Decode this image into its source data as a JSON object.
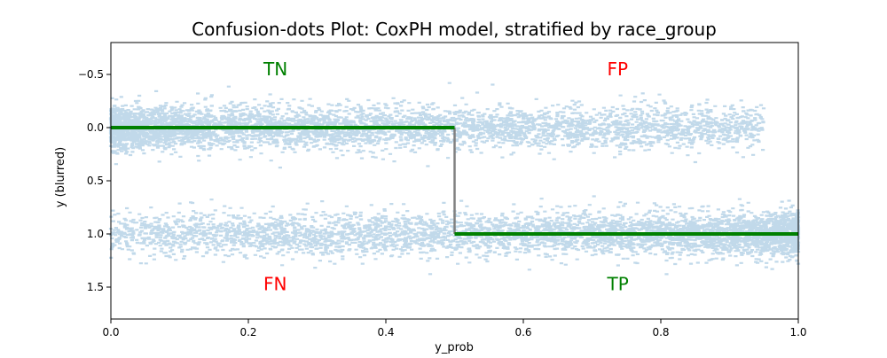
{
  "chart_data": {
    "type": "scatter",
    "title": "Confusion-dots Plot:   CoxPH model, stratified by race_group",
    "xlabel": "y_prob",
    "ylabel": "y (blurred)",
    "xlim": [
      0.0,
      1.0
    ],
    "ylim": [
      1.8,
      -0.8
    ],
    "y_inverted": true,
    "x_ticks": [
      0.0,
      0.2,
      0.4,
      0.6,
      0.8,
      1.0
    ],
    "x_tick_labels": [
      "0.0",
      "0.2",
      "0.4",
      "0.6",
      "0.8",
      "1.0"
    ],
    "y_ticks": [
      -0.5,
      0.0,
      0.5,
      1.0,
      1.5
    ],
    "y_tick_labels": [
      "−0.5",
      "0.0",
      "0.5",
      "1.0",
      "1.5"
    ],
    "grid": false,
    "colors": {
      "points": "#1f77b4",
      "threshold_step": "#008000",
      "threshold_vertical": "#808080",
      "label_correct": "#008000",
      "label_wrong": "#ff0000"
    },
    "threshold": {
      "x": 0.5,
      "segments": [
        {
          "x": [
            0.0,
            0.5
          ],
          "y": 0.0
        },
        {
          "x": [
            0.5,
            1.0
          ],
          "y": 1.0
        }
      ]
    },
    "quadrant_labels": [
      {
        "text": "TN",
        "x": 0.24,
        "y": -0.55,
        "color": "#008000"
      },
      {
        "text": "FP",
        "x": 0.74,
        "y": -0.55,
        "color": "#ff0000"
      },
      {
        "text": "FN",
        "x": 0.24,
        "y": 1.47,
        "color": "#ff0000"
      },
      {
        "text": "TP",
        "x": 0.74,
        "y": 1.47,
        "color": "#008000"
      }
    ],
    "series": [
      {
        "class": 0,
        "y_center": 0.0,
        "y_spread": 0.1,
        "x_range": [
          0.0,
          0.95
        ],
        "approx_points": 13000,
        "density": "decreasing with x, dense near 0"
      },
      {
        "class": 1,
        "y_center": 1.0,
        "y_spread": 0.1,
        "x_range": [
          0.0,
          1.0
        ],
        "approx_points": 13000,
        "density": "increasing with x, dense near 1"
      }
    ]
  }
}
